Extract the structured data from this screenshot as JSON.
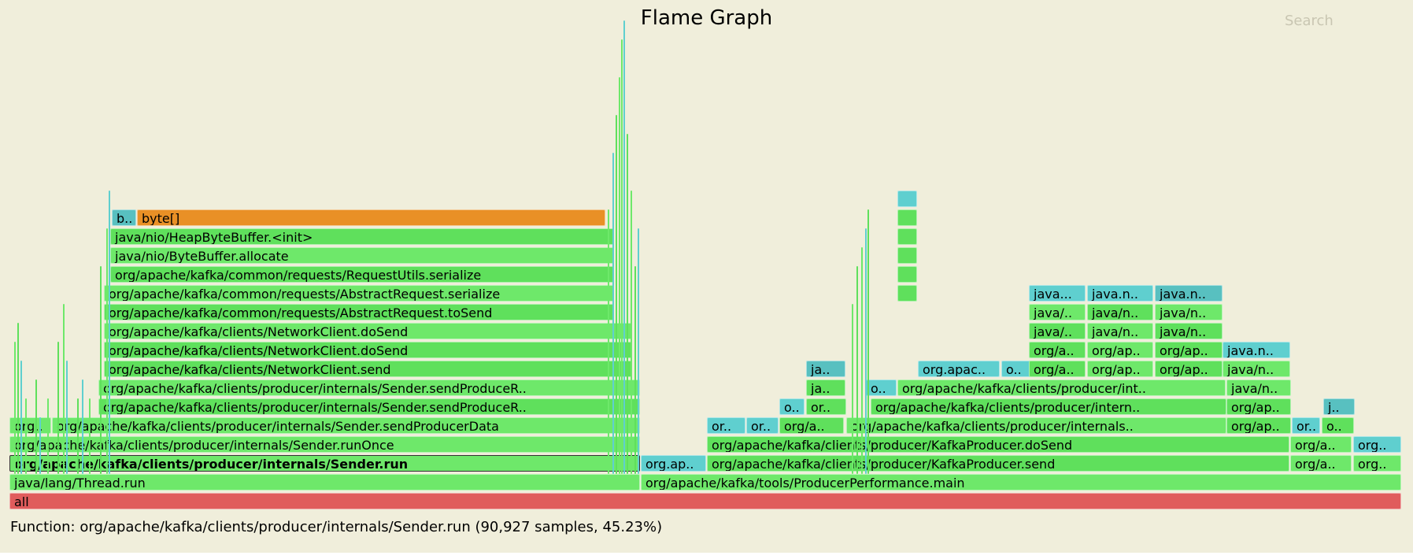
{
  "title": "Flame Graph",
  "search_label": "Search",
  "details": "Function: org/apache/kafka/clients/producer/internals/Sender.run (90,927 samples, 45.23%)",
  "colors": {
    "background": "#f0eedb",
    "root": "#e05c5c",
    "java": "#6ee86a",
    "java_alt": "#5fe05c",
    "inlined": "#5fcfcf",
    "inlined_dark": "#58c0c0",
    "kernel": "#e99026"
  },
  "frames": [
    {
      "label": "all",
      "col": "root",
      "sel": false
    },
    {
      "label": "java/lang/Thread.run",
      "col": "java",
      "sel": false
    },
    {
      "label": "org/apache/kafka/tools/ProducerPerformance.main",
      "col": "java",
      "sel": false
    },
    {
      "label": "org/apache/kafka/clients/producer/internals/Sender.run",
      "col": "java",
      "sel": true
    },
    {
      "label": "org.ap..",
      "col": "inlined",
      "sel": false
    },
    {
      "label": "org/apache/kafka/clients/producer/KafkaProducer.send",
      "col": "java_alt",
      "sel": false
    },
    {
      "label": "org/a..",
      "col": "java",
      "sel": false
    },
    {
      "label": "org..",
      "col": "java",
      "sel": false
    },
    {
      "label": "org/apache/kafka/clients/producer/internals/Sender.runOnce",
      "col": "java",
      "sel": false
    },
    {
      "label": "org/apache/kafka/clients/producer/KafkaProducer.doSend",
      "col": "java_alt",
      "sel": false
    },
    {
      "label": "org/a..",
      "col": "java",
      "sel": false
    },
    {
      "label": "org..",
      "col": "inlined",
      "sel": false
    },
    {
      "label": "org..",
      "col": "java",
      "sel": false
    },
    {
      "label": "org/apache/kafka/clients/producer/internals/Sender.sendProducerData",
      "col": "java",
      "sel": false
    },
    {
      "label": "or..",
      "col": "inlined",
      "sel": false
    },
    {
      "label": "or..",
      "col": "inlined",
      "sel": false
    },
    {
      "label": "org/a..",
      "col": "java_alt",
      "sel": false
    },
    {
      "label": "org/apache/kafka/clients/producer/internals..",
      "col": "java",
      "sel": false
    },
    {
      "label": "org/ap..",
      "col": "java_alt",
      "sel": false
    },
    {
      "label": "or..",
      "col": "inlined",
      "sel": false
    },
    {
      "label": "o..",
      "col": "java_alt",
      "sel": false
    },
    {
      "label": "org/apache/kafka/clients/producer/internals/Sender.sendProduceR..",
      "col": "java_alt",
      "sel": false
    },
    {
      "label": "o..",
      "col": "inlined",
      "sel": false
    },
    {
      "label": "or..",
      "col": "java_alt",
      "sel": false
    },
    {
      "label": "org/apache/kafka/clients/producer/intern..",
      "col": "java_alt",
      "sel": false
    },
    {
      "label": "org/ap..",
      "col": "java_alt",
      "sel": false
    },
    {
      "label": "j..",
      "col": "inlined_dark",
      "sel": false
    },
    {
      "label": "org/apache/kafka/clients/producer/internals/Sender.sendProduceR..",
      "col": "java",
      "sel": false
    },
    {
      "label": "ja..",
      "col": "java_alt",
      "sel": false
    },
    {
      "label": "o..",
      "col": "inlined",
      "sel": false
    },
    {
      "label": "org/apache/kafka/clients/producer/int..",
      "col": "java",
      "sel": false
    },
    {
      "label": "java/n..",
      "col": "java",
      "sel": false
    },
    {
      "label": "org/apache/kafka/clients/NetworkClient.send",
      "col": "java_alt",
      "sel": false
    },
    {
      "label": "ja..",
      "col": "inlined_dark",
      "sel": false
    },
    {
      "label": "org.apac..",
      "col": "inlined",
      "sel": false
    },
    {
      "label": "o..",
      "col": "inlined",
      "sel": false
    },
    {
      "label": "org/a..",
      "col": "java_alt",
      "sel": false
    },
    {
      "label": "org/ap..",
      "col": "java",
      "sel": false
    },
    {
      "label": "org/ap..",
      "col": "java_alt",
      "sel": false
    },
    {
      "label": "java/n..",
      "col": "java",
      "sel": false
    },
    {
      "label": "org/apache/kafka/clients/NetworkClient.doSend",
      "col": "java_alt",
      "sel": false
    },
    {
      "label": "org/a..",
      "col": "java_alt",
      "sel": false
    },
    {
      "label": "org/ap..",
      "col": "java",
      "sel": false
    },
    {
      "label": "org/ap..",
      "col": "java_alt",
      "sel": false
    },
    {
      "label": "java.n..",
      "col": "inlined",
      "sel": false
    },
    {
      "label": "org/apache/kafka/clients/NetworkClient.doSend",
      "col": "java",
      "sel": false
    },
    {
      "label": "java/..",
      "col": "java_alt",
      "sel": false
    },
    {
      "label": "java/n..",
      "col": "java",
      "sel": false
    },
    {
      "label": "java/n..",
      "col": "java_alt",
      "sel": false
    },
    {
      "label": "org/apache/kafka/common/requests/AbstractRequest.toSend",
      "col": "java_alt",
      "sel": false
    },
    {
      "label": "java/..",
      "col": "java",
      "sel": false
    },
    {
      "label": "java/n..",
      "col": "java_alt",
      "sel": false
    },
    {
      "label": "java/n..",
      "col": "java",
      "sel": false
    },
    {
      "label": "org/apache/kafka/common/requests/AbstractRequest.serialize",
      "col": "java",
      "sel": false
    },
    {
      "label": "java...",
      "col": "inlined",
      "sel": false
    },
    {
      "label": "java.n..",
      "col": "inlined",
      "sel": false
    },
    {
      "label": "java.n..",
      "col": "inlined_dark",
      "sel": false
    },
    {
      "label": "org/apache/kafka/common/requests/RequestUtils.serialize",
      "col": "java_alt",
      "sel": false
    },
    {
      "label": "java/nio/ByteBuffer.allocate",
      "col": "java",
      "sel": false
    },
    {
      "label": "java/nio/HeapByteBuffer.<init>",
      "col": "java_alt",
      "sel": false
    },
    {
      "label": "b..",
      "col": "inlined_dark",
      "sel": false
    },
    {
      "label": "byte[]",
      "col": "kernel",
      "sel": false
    },
    {
      "label": "",
      "col": "inlined",
      "sel": false
    },
    {
      "label": "",
      "col": "java_alt",
      "sel": false
    },
    {
      "label": "",
      "col": "java_alt",
      "sel": false
    },
    {
      "label": "",
      "col": "java_alt",
      "sel": false
    },
    {
      "label": "",
      "col": "java_alt",
      "sel": false
    },
    {
      "label": "",
      "col": "java_alt",
      "sel": false
    }
  ]
}
